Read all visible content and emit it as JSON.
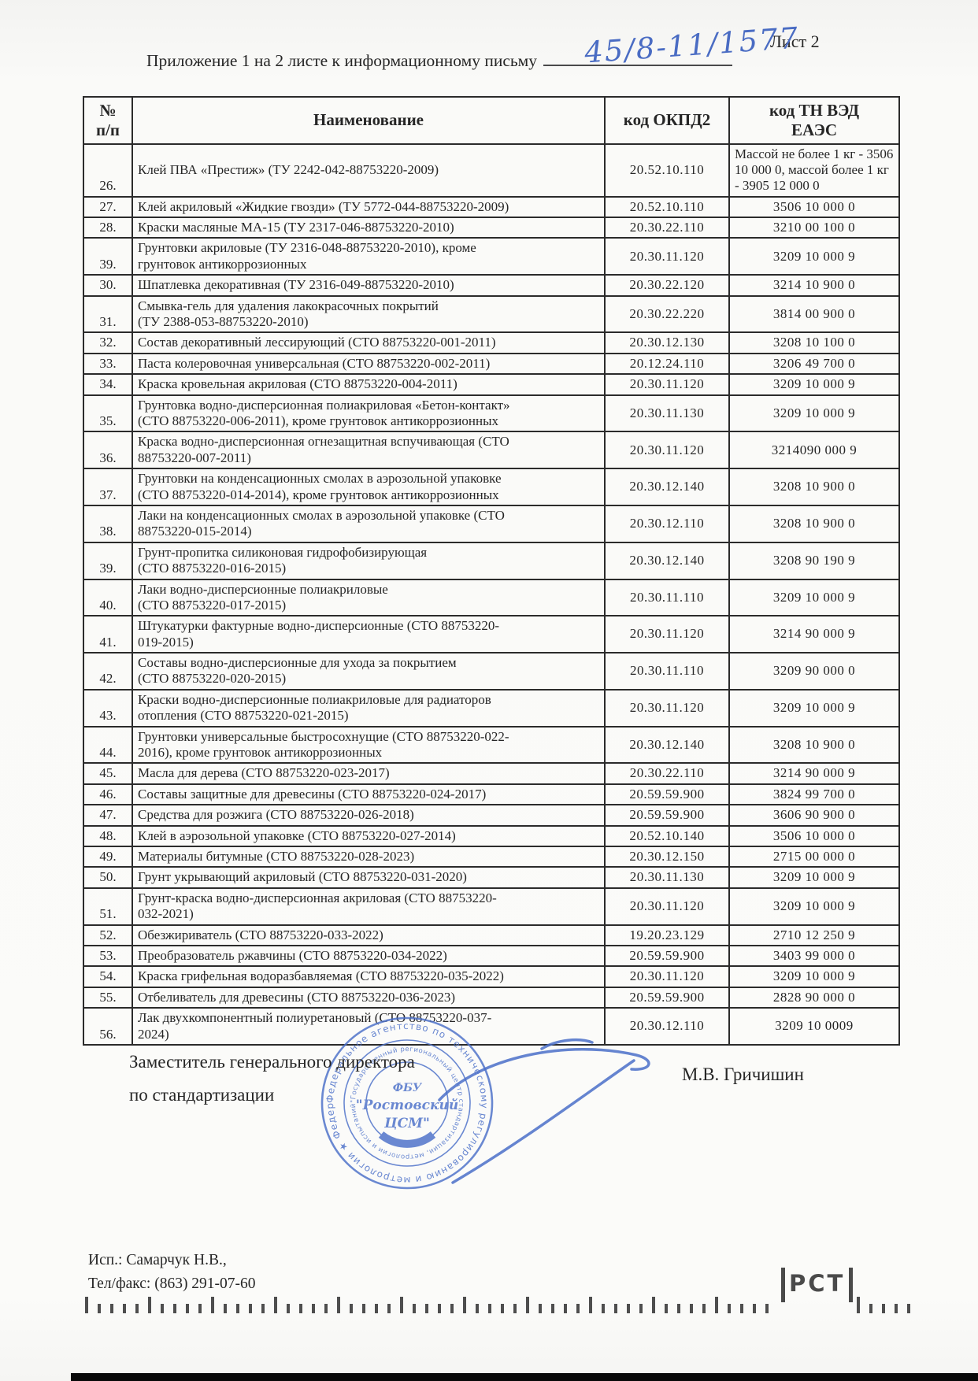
{
  "page": {
    "sheet_label": "Лист 2",
    "appendix_text": "Приложение 1 на 2 листе к информационному письму",
    "handwritten_number": "45/8-11/1577"
  },
  "table": {
    "col_num_header": "№\nп/п",
    "col_name_header": "Наименование",
    "col_okpd2_header": "код ОКПД2",
    "col_tnved_header": "код ТН ВЭД\nЕАЭС",
    "rows": [
      {
        "num": "26.",
        "name": "Клей ПВА «Престиж» (ТУ 2242-042-88753220-2009)",
        "okpd2": "20.52.10.110",
        "tnved": "Массой не более 1\nкг - 3506 10 000 0,\nмассой более 1 кг -\n3905 12 000 0",
        "tnved_small": true
      },
      {
        "num": "27.",
        "name": "Клей акриловый «Жидкие гвозди» (ТУ 5772-044-88753220-2009)",
        "okpd2": "20.52.10.110",
        "tnved": "3506 10 000 0"
      },
      {
        "num": "28.",
        "name": "Краски масляные МА-15 (ТУ 2317-046-88753220-2010)",
        "okpd2": "20.30.22.110",
        "tnved": "3210 00 100 0"
      },
      {
        "num": "39.",
        "name": "Грунтовки акриловые (ТУ 2316-048-88753220-2010), кроме\nгрунтовок антикоррозионных",
        "okpd2": "20.30.11.120",
        "tnved": "3209 10 000 9"
      },
      {
        "num": "30.",
        "name": "Шпатлевка декоративная  (ТУ 2316-049-88753220-2010)",
        "okpd2": "20.30.22.120",
        "tnved": "3214 10 900 0"
      },
      {
        "num": "31.",
        "name": "Смывка-гель для удаления лакокрасочных покрытий\n(ТУ 2388-053-88753220-2010)",
        "okpd2": "20.30.22.220",
        "tnved": "3814 00 900 0"
      },
      {
        "num": "32.",
        "name": "Состав декоративный лессирующий (СТО 88753220-001-2011)",
        "okpd2": "20.30.12.130",
        "tnved": "3208 10 100 0"
      },
      {
        "num": "33.",
        "name": "Паста колеровочная универсальная (СТО 88753220-002-2011)",
        "okpd2": "20.12.24.110",
        "tnved": "3206 49 700 0"
      },
      {
        "num": "34.",
        "name": "Краска кровельная акриловая (СТО 88753220-004-2011)",
        "okpd2": "20.30.11.120",
        "tnved": "3209 10 000 9"
      },
      {
        "num": "35.",
        "name": "Грунтовка водно-дисперсионная полиакриловая «Бетон-контакт»\n(СТО 88753220-006-2011), кроме грунтовок антикоррозионных",
        "okpd2": "20.30.11.130",
        "tnved": "3209 10 000 9"
      },
      {
        "num": "36.",
        "name": "Краска водно-дисперсионная огнезащитная вспучивающая (СТО\n88753220-007-2011)",
        "okpd2": "20.30.11.120",
        "tnved": "3214090 000 9"
      },
      {
        "num": "37.",
        "name": "Грунтовки на конденсационных смолах в аэрозольной упаковке\n(СТО 88753220-014-2014), кроме грунтовок антикоррозионных",
        "okpd2": "20.30.12.140",
        "tnved": "3208 10 900 0"
      },
      {
        "num": "38.",
        "name": "Лаки на конденсационных смолах в аэрозольной упаковке (СТО\n88753220-015-2014)",
        "okpd2": "20.30.12.110",
        "tnved": "3208 10 900 0"
      },
      {
        "num": "39.",
        "name": "Грунт-пропитка силиконовая гидрофобизирующая\n(СТО 88753220-016-2015)",
        "okpd2": "20.30.12.140",
        "tnved": "3208 90 190 9"
      },
      {
        "num": "40.",
        "name": "Лаки водно-дисперсионные полиакриловые\n(СТО 88753220-017-2015)",
        "okpd2": "20.30.11.110",
        "tnved": "3209 10 000 9"
      },
      {
        "num": "41.",
        "name": "Штукатурки фактурные водно-дисперсионные (СТО 88753220-\n019-2015)",
        "okpd2": "20.30.11.120",
        "tnved": "3214 90 000 9"
      },
      {
        "num": "42.",
        "name": "Составы водно-дисперсионные для ухода за покрытием\n(СТО 88753220-020-2015)",
        "okpd2": "20.30.11.110",
        "tnved": "3209 90 000 0"
      },
      {
        "num": "43.",
        "name": "Краски водно-дисперсионные полиакриловые для радиаторов\nотопления (СТО 88753220-021-2015)",
        "okpd2": "20.30.11.120",
        "tnved": "3209 10 000 9"
      },
      {
        "num": "44.",
        "name": "Грунтовки универсальные быстросохнущие (СТО 88753220-022-\n2016), кроме грунтовок антикоррозионных",
        "okpd2": "20.30.12.140",
        "tnved": "3208 10 900 0"
      },
      {
        "num": "45.",
        "name": "Масла для дерева (СТО 88753220-023-2017)",
        "okpd2": "20.30.22.110",
        "tnved": "3214 90 000 9"
      },
      {
        "num": "46.",
        "name": "Составы защитные для древесины (СТО 88753220-024-2017)",
        "okpd2": "20.59.59.900",
        "tnved": "3824 99 700 0"
      },
      {
        "num": "47.",
        "name": "Средства для розжига (СТО 88753220-026-2018)",
        "okpd2": "20.59.59.900",
        "tnved": "3606 90 900 0"
      },
      {
        "num": "48.",
        "name": "Клей в аэрозольной упаковке (СТО 88753220-027-2014)",
        "okpd2": "20.52.10.140",
        "tnved": "3506 10 000 0"
      },
      {
        "num": "49.",
        "name": "Материалы битумные (СТО 88753220-028-2023)",
        "okpd2": "20.30.12.150",
        "tnved": "2715 00 000 0"
      },
      {
        "num": "50.",
        "name": "Грунт укрывающий акриловый (СТО 88753220-031-2020)",
        "okpd2": "20.30.11.130",
        "tnved": "3209 10 000 9"
      },
      {
        "num": "51.",
        "name": "Грунт-краска водно-дисперсионная акриловая (СТО 88753220-\n032-2021)",
        "okpd2": "20.30.11.120",
        "tnved": "3209 10 000 9"
      },
      {
        "num": "52.",
        "name": "Обезжириватель (СТО 88753220-033-2022)",
        "okpd2": "19.20.23.129",
        "tnved": "2710 12 250 9"
      },
      {
        "num": "53.",
        "name": "Преобразователь ржавчины (СТО 88753220-034-2022)",
        "okpd2": "20.59.59.900",
        "tnved": "3403 99 000 0"
      },
      {
        "num": "54.",
        "name": "Краска грифельная водоразбавляемая (СТО 88753220-035-2022)",
        "okpd2": "20.30.11.120",
        "tnved": "3209 10 000 9"
      },
      {
        "num": "55.",
        "name": "Отбеливатель для древесины (СТО 88753220-036-2023)",
        "okpd2": "20.59.59.900",
        "tnved": "2828 90 000 0"
      },
      {
        "num": "56.",
        "name": "Лак двухкомпонентный полиуретановый (СТО 88753220-037-\n2024)",
        "okpd2": "20.30.12.110",
        "tnved": "3209 10 0009"
      }
    ]
  },
  "signature_block": {
    "position_line1": "Заместитель генерального директора",
    "position_line2": "по стандартизации",
    "signer_name": "М.В. Гричишин"
  },
  "stamp": {
    "outer_ring_text": "Федеральное агентство по техническому регулированию и метрологии ★ Федеральное бюджетное учреждение",
    "inner_ring_text": "\"Государственный региональный центр стандартизации, метрологии и испытаний в Ростовской области\" ОГРН 1026103163833 ИНН 6163006440",
    "center_line1": "ФБУ",
    "center_line2": "\"Ростовский",
    "center_line3": "ЦСМ\""
  },
  "contact": {
    "executor": "Исп.: Самарчук Н.В.,",
    "phone": "Тел/факс: (863) 291-07-60"
  },
  "footer_mark": {
    "rst_label": "РСТ"
  },
  "colors": {
    "ink_blue": "#4a6cc3",
    "stamp_blue": "#4b70c9",
    "text": "#262626"
  }
}
